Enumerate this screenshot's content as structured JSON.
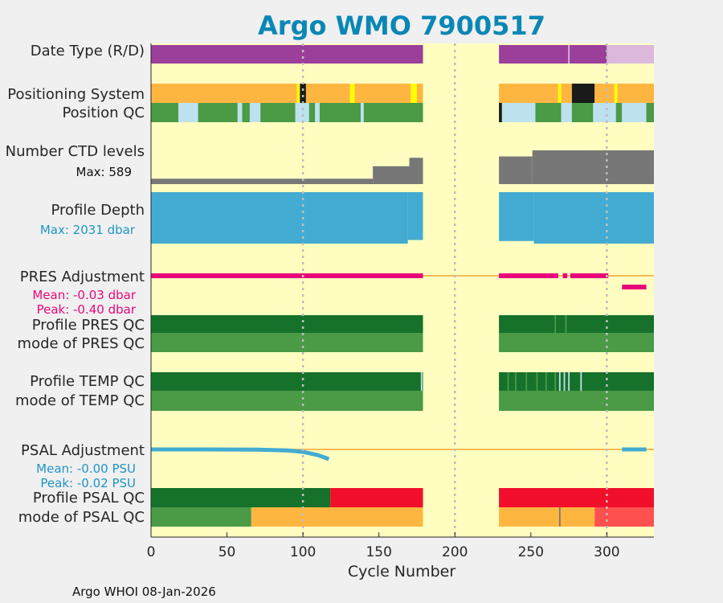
{
  "chart_data": {
    "type": "table",
    "title": "Argo WMO 7900517",
    "xlabel": "Cycle Number",
    "xlim": [
      0,
      331
    ],
    "xticks": [
      0,
      50,
      100,
      150,
      200,
      250,
      300
    ],
    "grid_x": [
      100,
      200,
      300
    ],
    "footer": "Argo WHOI 08-Jan-2026",
    "colors": {
      "background": "#fffec0",
      "realtime": "#9b3f9b",
      "delayed": "#dbb8dc",
      "gps_orange": "#ffb640",
      "argos_yellow": "#ffff00",
      "black": "#1a1a1a",
      "qc_green": "#4a9a46",
      "qc_lightblue": "#bde1ee",
      "qc_darkgreen": "#16712b",
      "qc_red": "#f10f2b",
      "qc_grey": "#bfbfbf",
      "qc_orange": "#ffb640",
      "light_red": "#ff5050",
      "ctd_grey": "#777777",
      "depth_blue": "#43abd1",
      "pres_pink": "#e8077a",
      "psal_blue": "#43abd1",
      "zero_line": "#f4bb58",
      "grid": "#bdbdbd"
    },
    "rows": [
      {
        "id": "date-type",
        "label": "Date Type (R/D)",
        "segments": [
          {
            "start": 0,
            "end": 179,
            "color": "realtime"
          },
          {
            "start": 229,
            "end": 300,
            "color": "realtime"
          },
          {
            "start": 300,
            "end": 331,
            "color": "delayed"
          }
        ]
      },
      {
        "id": "positioning-system",
        "label": "Positioning System",
        "segments": [
          {
            "start": 0,
            "end": 96,
            "color": "gps_orange"
          },
          {
            "start": 96,
            "end": 98,
            "color": "argos_yellow"
          },
          {
            "start": 98,
            "end": 102,
            "color": "black"
          },
          {
            "start": 102,
            "end": 131,
            "color": "gps_orange"
          },
          {
            "start": 131,
            "end": 134,
            "color": "argos_yellow"
          },
          {
            "start": 134,
            "end": 171,
            "color": "gps_orange"
          },
          {
            "start": 171,
            "end": 175,
            "color": "argos_yellow"
          },
          {
            "start": 175,
            "end": 179,
            "color": "gps_orange"
          },
          {
            "start": 229,
            "end": 268,
            "color": "gps_orange"
          },
          {
            "start": 268,
            "end": 270,
            "color": "argos_yellow"
          },
          {
            "start": 270,
            "end": 277,
            "color": "gps_orange"
          },
          {
            "start": 277,
            "end": 292,
            "color": "black"
          },
          {
            "start": 292,
            "end": 305,
            "color": "gps_orange"
          },
          {
            "start": 305,
            "end": 307,
            "color": "argos_yellow"
          },
          {
            "start": 307,
            "end": 331,
            "color": "gps_orange"
          }
        ]
      },
      {
        "id": "position-qc",
        "label": "Position QC",
        "segments": [
          {
            "start": 0,
            "end": 18,
            "color": "qc_green"
          },
          {
            "start": 18,
            "end": 21,
            "color": "qc_lightblue"
          },
          {
            "start": 21,
            "end": 31,
            "color": "qc_lightblue"
          },
          {
            "start": 31,
            "end": 57,
            "color": "qc_green"
          },
          {
            "start": 57,
            "end": 60,
            "color": "qc_lightblue"
          },
          {
            "start": 60,
            "end": 65,
            "color": "qc_green"
          },
          {
            "start": 65,
            "end": 72,
            "color": "qc_lightblue"
          },
          {
            "start": 72,
            "end": 95,
            "color": "qc_green"
          },
          {
            "start": 95,
            "end": 98,
            "color": "qc_lightblue"
          },
          {
            "start": 98,
            "end": 104,
            "color": "qc_lightblue"
          },
          {
            "start": 104,
            "end": 108,
            "color": "qc_green"
          },
          {
            "start": 108,
            "end": 111,
            "color": "qc_lightblue"
          },
          {
            "start": 111,
            "end": 138,
            "color": "qc_green"
          },
          {
            "start": 138,
            "end": 140,
            "color": "qc_lightblue"
          },
          {
            "start": 140,
            "end": 179,
            "color": "qc_green"
          },
          {
            "start": 229,
            "end": 231,
            "color": "black"
          },
          {
            "start": 231,
            "end": 253,
            "color": "qc_lightblue"
          },
          {
            "start": 253,
            "end": 270,
            "color": "qc_green"
          },
          {
            "start": 270,
            "end": 277,
            "color": "qc_lightblue"
          },
          {
            "start": 277,
            "end": 291,
            "color": "qc_green"
          },
          {
            "start": 291,
            "end": 306,
            "color": "qc_lightblue"
          },
          {
            "start": 306,
            "end": 310,
            "color": "qc_green"
          },
          {
            "start": 310,
            "end": 326,
            "color": "qc_lightblue"
          },
          {
            "start": 326,
            "end": 331,
            "color": "qc_green"
          }
        ]
      },
      {
        "id": "ctd-levels",
        "label": "Number CTD levels",
        "stat": "Max: 589",
        "stat_color": "#111111",
        "blocks": [
          {
            "start": 0,
            "end": 146,
            "value": 0.16
          },
          {
            "start": 146,
            "end": 170,
            "value": 0.53
          },
          {
            "start": 170,
            "end": 179,
            "value": 0.78
          },
          {
            "start": 229,
            "end": 251,
            "value": 0.82
          },
          {
            "start": 251,
            "end": 331,
            "value": 1.0
          }
        ]
      },
      {
        "id": "profile-depth",
        "label": "Profile Depth",
        "stat": "Max: 2031 dbar",
        "stat_color": "#1f95c6",
        "blocks": [
          {
            "start": 0,
            "end": 169,
            "value": 1.0
          },
          {
            "start": 169,
            "end": 179,
            "value": 0.93
          },
          {
            "start": 229,
            "end": 252,
            "value": 0.95
          },
          {
            "start": 252,
            "end": 331,
            "value": 1.0
          }
        ]
      },
      {
        "id": "pres-adjustment",
        "label": "PRES Adjustment",
        "stats": [
          "Mean: -0.03 dbar",
          "Peak: -0.40 dbar"
        ],
        "stat_color": "#e8077a"
      },
      {
        "id": "profile-pres-qc",
        "label": "Profile PRES QC",
        "segments": [
          {
            "start": 0,
            "end": 179,
            "color": "qc_darkgreen"
          },
          {
            "start": 229,
            "end": 331,
            "color": "qc_darkgreen"
          }
        ]
      },
      {
        "id": "mode-pres-qc",
        "label": "mode of PRES QC",
        "segments": [
          {
            "start": 0,
            "end": 179,
            "color": "qc_green"
          },
          {
            "start": 229,
            "end": 331,
            "color": "qc_green"
          }
        ]
      },
      {
        "id": "profile-temp-qc",
        "label": "Profile TEMP QC",
        "segments": [
          {
            "start": 0,
            "end": 179,
            "color": "qc_darkgreen"
          },
          {
            "start": 229,
            "end": 331,
            "color": "qc_darkgreen"
          }
        ]
      },
      {
        "id": "mode-temp-qc",
        "label": "mode of TEMP QC",
        "segments": [
          {
            "start": 0,
            "end": 179,
            "color": "qc_green"
          },
          {
            "start": 229,
            "end": 331,
            "color": "qc_green"
          }
        ]
      },
      {
        "id": "psal-adjustment",
        "label": "PSAL Adjustment",
        "stats": [
          "Mean: -0.00 PSU",
          "Peak: -0.02 PSU"
        ],
        "stat_color": "#1f95c6"
      },
      {
        "id": "profile-psal-qc",
        "label": "Profile PSAL QC",
        "segments": [
          {
            "start": 0,
            "end": 118,
            "color": "qc_darkgreen"
          },
          {
            "start": 118,
            "end": 179,
            "color": "qc_red"
          },
          {
            "start": 229,
            "end": 331,
            "color": "qc_red"
          }
        ]
      },
      {
        "id": "mode-psal-qc",
        "label": "mode of PSAL QC",
        "segments": [
          {
            "start": 0,
            "end": 66,
            "color": "qc_green"
          },
          {
            "start": 66,
            "end": 179,
            "color": "qc_orange"
          },
          {
            "start": 229,
            "end": 292,
            "color": "qc_orange"
          },
          {
            "start": 292,
            "end": 331,
            "color": "light_red"
          }
        ]
      }
    ],
    "pres_adjustment": {
      "series": [
        {
          "start": 0,
          "end": 179,
          "value": 0.0
        },
        {
          "start": 229,
          "end": 268,
          "value": 0.0
        },
        {
          "start": 271,
          "end": 274,
          "value": 0.0
        },
        {
          "start": 276,
          "end": 301,
          "value": 0.0
        },
        {
          "start": 310,
          "end": 326,
          "value": -0.4
        }
      ],
      "range": [
        -0.4,
        0.0
      ]
    },
    "psal_adjustment": {
      "x": [
        0,
        35,
        70,
        90,
        100,
        110,
        117
      ],
      "y": [
        0.0,
        0.0,
        -0.0005,
        -0.002,
        -0.005,
        -0.012,
        -0.02
      ],
      "extra": [
        {
          "start": 310,
          "end": 326,
          "value": 0.0
        }
      ],
      "range": [
        -0.02,
        0.0
      ]
    },
    "overlays": [
      {
        "row": "profile-temp-qc",
        "cycles": [
          235,
          240,
          247,
          254,
          260,
          266
        ],
        "color": "qc_green"
      },
      {
        "row": "profile-temp-qc",
        "cycles": [
          178,
          269,
          272,
          275,
          283
        ],
        "color": "qc_lightblue"
      },
      {
        "row": "profile-pres-qc",
        "cycles": [
          266,
          273
        ],
        "color": "qc_green"
      },
      {
        "row": "date-type",
        "cycles": [
          275
        ],
        "color": "delayed"
      },
      {
        "row": "mode-psal-qc",
        "cycles": [
          269
        ],
        "color": "ctd_grey"
      }
    ]
  }
}
